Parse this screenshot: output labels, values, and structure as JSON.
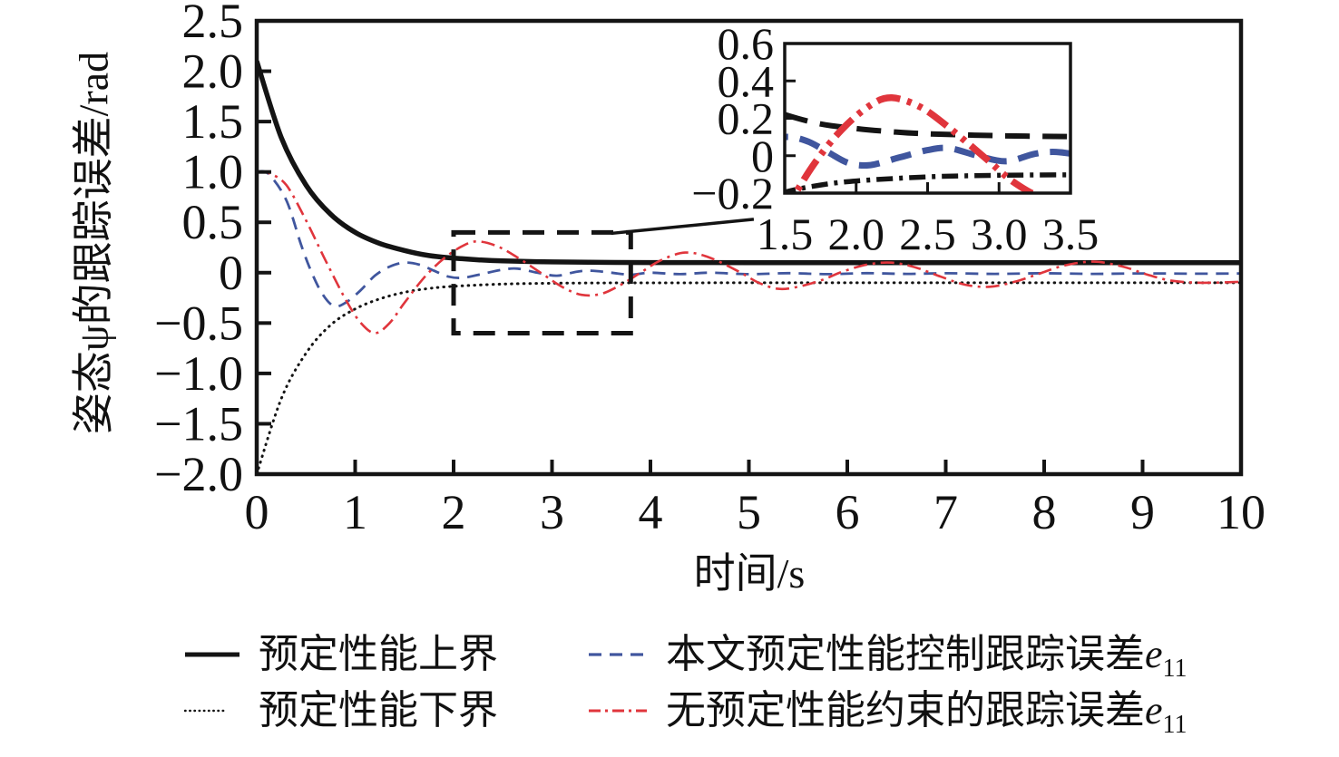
{
  "figure": {
    "x_axis_title": "时间/s",
    "y_axis_title": "姿态ψ的跟踪误差/rad"
  },
  "chart_data": {
    "type": "line",
    "xlabel": "时间/s",
    "ylabel": "姿态ψ的跟踪误差/rad",
    "xlim": [
      0,
      10
    ],
    "ylim": [
      -2.0,
      2.5
    ],
    "grid": false,
    "legend_position": "below",
    "x_ticks": [
      {
        "v": 0,
        "label": "0"
      },
      {
        "v": 1,
        "label": "1"
      },
      {
        "v": 2,
        "label": "2"
      },
      {
        "v": 3,
        "label": "3"
      },
      {
        "v": 4,
        "label": "4"
      },
      {
        "v": 5,
        "label": "5"
      },
      {
        "v": 6,
        "label": "6"
      },
      {
        "v": 7,
        "label": "7"
      },
      {
        "v": 8,
        "label": "8"
      },
      {
        "v": 9,
        "label": "9"
      },
      {
        "v": 10,
        "label": "10"
      }
    ],
    "y_ticks": [
      {
        "v": 2.5,
        "label": "2.5"
      },
      {
        "v": 2.0,
        "label": "2.0"
      },
      {
        "v": 1.5,
        "label": "1.5"
      },
      {
        "v": 1.0,
        "label": "1.0"
      },
      {
        "v": 0.5,
        "label": "0.5"
      },
      {
        "v": 0,
        "label": "0"
      },
      {
        "v": -0.5,
        "label": "−0.5"
      },
      {
        "v": -1.0,
        "label": "−1.0"
      },
      {
        "v": -1.5,
        "label": "−1.5"
      },
      {
        "v": -2.0,
        "label": "−2.0"
      }
    ],
    "series": [
      {
        "id": "upper",
        "name": "预定性能上界",
        "line_style": "solid",
        "color": "#141414",
        "points": [
          [
            0,
            2.1
          ],
          [
            0.25,
            1.34
          ],
          [
            0.5,
            0.87
          ],
          [
            0.75,
            0.58
          ],
          [
            1,
            0.4
          ],
          [
            1.25,
            0.29
          ],
          [
            1.5,
            0.22
          ],
          [
            1.75,
            0.17
          ],
          [
            2,
            0.145
          ],
          [
            2.25,
            0.128
          ],
          [
            2.5,
            0.117
          ],
          [
            3,
            0.107
          ],
          [
            3.5,
            0.102
          ],
          [
            4,
            0.101
          ],
          [
            5,
            0.1
          ],
          [
            6,
            0.1
          ],
          [
            7,
            0.1
          ],
          [
            8,
            0.1
          ],
          [
            9,
            0.1
          ],
          [
            10,
            0.1
          ]
        ]
      },
      {
        "id": "lower",
        "name": "预定性能下界",
        "line_style": "dotted",
        "color": "#141414",
        "points": [
          [
            0,
            -2.0
          ],
          [
            0.25,
            -1.25
          ],
          [
            0.5,
            -0.8
          ],
          [
            0.75,
            -0.52
          ],
          [
            1,
            -0.36
          ],
          [
            1.25,
            -0.26
          ],
          [
            1.5,
            -0.195
          ],
          [
            1.75,
            -0.157
          ],
          [
            2,
            -0.135
          ],
          [
            2.5,
            -0.113
          ],
          [
            3,
            -0.105
          ],
          [
            3.5,
            -0.102
          ],
          [
            4,
            -0.101
          ],
          [
            5,
            -0.1
          ],
          [
            6,
            -0.1
          ],
          [
            7,
            -0.1
          ],
          [
            8,
            -0.1
          ],
          [
            9,
            -0.1
          ],
          [
            10,
            -0.1
          ]
        ]
      },
      {
        "id": "blue",
        "name": "本文预定性能控制跟踪误差e11",
        "line_style": "dashed",
        "color": "#40569e",
        "points": [
          [
            0,
            1.0
          ],
          [
            0.12,
            0.98
          ],
          [
            0.3,
            0.72
          ],
          [
            0.45,
            0.28
          ],
          [
            0.55,
            0.02
          ],
          [
            0.66,
            -0.2
          ],
          [
            0.78,
            -0.33
          ],
          [
            0.9,
            -0.3
          ],
          [
            1.05,
            -0.18
          ],
          [
            1.2,
            -0.03
          ],
          [
            1.35,
            0.06
          ],
          [
            1.5,
            0.1
          ],
          [
            1.65,
            0.08
          ],
          [
            1.8,
            0.02
          ],
          [
            1.95,
            -0.04
          ],
          [
            2.1,
            -0.05
          ],
          [
            2.3,
            -0.01
          ],
          [
            2.5,
            0.03
          ],
          [
            2.65,
            0.04
          ],
          [
            2.85,
            0
          ],
          [
            3.05,
            -0.03
          ],
          [
            3.25,
            0.01
          ],
          [
            3.4,
            0.02
          ],
          [
            3.6,
            0
          ],
          [
            3.8,
            -0.02
          ],
          [
            4,
            0
          ],
          [
            4.3,
            -0.015
          ],
          [
            4.6,
            0
          ],
          [
            5,
            -0.015
          ],
          [
            5.4,
            -0.005
          ],
          [
            5.8,
            -0.015
          ],
          [
            6.2,
            -0.005
          ],
          [
            6.6,
            -0.012
          ],
          [
            7,
            -0.006
          ],
          [
            7.5,
            -0.012
          ],
          [
            8,
            -0.006
          ],
          [
            8.5,
            -0.012
          ],
          [
            9,
            -0.007
          ],
          [
            9.5,
            -0.01
          ],
          [
            10,
            -0.008
          ]
        ]
      },
      {
        "id": "red",
        "name": "无预定性能约束的跟踪误差e11",
        "line_style": "dashdot",
        "color": "#e0353c",
        "points": [
          [
            0,
            1.0
          ],
          [
            0.12,
            0.99
          ],
          [
            0.3,
            0.87
          ],
          [
            0.5,
            0.52
          ],
          [
            0.7,
            0.12
          ],
          [
            0.9,
            -0.26
          ],
          [
            1.05,
            -0.49
          ],
          [
            1.2,
            -0.6
          ],
          [
            1.35,
            -0.5
          ],
          [
            1.5,
            -0.3
          ],
          [
            1.7,
            -0.05
          ],
          [
            1.9,
            0.14
          ],
          [
            2.1,
            0.27
          ],
          [
            2.25,
            0.31
          ],
          [
            2.45,
            0.26
          ],
          [
            2.65,
            0.15
          ],
          [
            2.9,
            -0.01
          ],
          [
            3.1,
            -0.14
          ],
          [
            3.3,
            -0.22
          ],
          [
            3.5,
            -0.21
          ],
          [
            3.7,
            -0.12
          ],
          [
            3.9,
            0
          ],
          [
            4.1,
            0.12
          ],
          [
            4.35,
            0.2
          ],
          [
            4.6,
            0.15
          ],
          [
            4.9,
            0.01
          ],
          [
            5.1,
            -0.1
          ],
          [
            5.3,
            -0.16
          ],
          [
            5.5,
            -0.14
          ],
          [
            5.75,
            -0.07
          ],
          [
            5.95,
            0.01
          ],
          [
            6.2,
            0.08
          ],
          [
            6.45,
            0.1
          ],
          [
            6.7,
            0.05
          ],
          [
            6.95,
            -0.04
          ],
          [
            7.2,
            -0.12
          ],
          [
            7.45,
            -0.14
          ],
          [
            7.7,
            -0.09
          ],
          [
            7.95,
            -0.01
          ],
          [
            8.2,
            0.07
          ],
          [
            8.5,
            0.11
          ],
          [
            8.8,
            0.06
          ],
          [
            9.05,
            -0.02
          ],
          [
            9.3,
            -0.08
          ],
          [
            9.6,
            -0.1
          ],
          [
            10,
            -0.09
          ]
        ]
      }
    ],
    "inset": {
      "xlim": [
        1.5,
        3.5
      ],
      "ylim": [
        -0.2,
        0.6
      ],
      "x_ticks": [
        {
          "v": 1.5,
          "label": "1.5",
          "mark": false
        },
        {
          "v": 2.0,
          "label": "2.0",
          "mark": true
        },
        {
          "v": 2.5,
          "label": "2.5",
          "mark": true
        },
        {
          "v": 3.0,
          "label": "3.0",
          "mark": true
        },
        {
          "v": 3.5,
          "label": "3.5",
          "mark": false
        }
      ],
      "y_ticks": [
        {
          "v": 0.6,
          "label": "0.6",
          "mark": false
        },
        {
          "v": 0.4,
          "label": "0.4",
          "mark": true
        },
        {
          "v": 0.2,
          "label": "0.2",
          "mark": true
        },
        {
          "v": 0,
          "label": "0",
          "mark": true
        },
        {
          "v": -0.2,
          "label": "−0.2",
          "mark": false
        }
      ]
    },
    "zoom_region": {
      "x0": 2.0,
      "x1": 3.8,
      "y0": -0.6,
      "y1": 0.4
    },
    "callout_line": {
      "from": [
        3.6,
        0.39
      ],
      "to": [
        5.05,
        0.53
      ]
    }
  },
  "legend": {
    "items": [
      {
        "id": "upper",
        "label": "预定性能上界",
        "var": "",
        "sub": ""
      },
      {
        "id": "blue",
        "label": "本文预定性能控制跟踪误差",
        "var": "e",
        "sub": "11"
      },
      {
        "id": "lower",
        "label": "预定性能下界",
        "var": "",
        "sub": ""
      },
      {
        "id": "red",
        "label": "无预定性能约束的跟踪误差",
        "var": "e",
        "sub": "11"
      }
    ]
  }
}
